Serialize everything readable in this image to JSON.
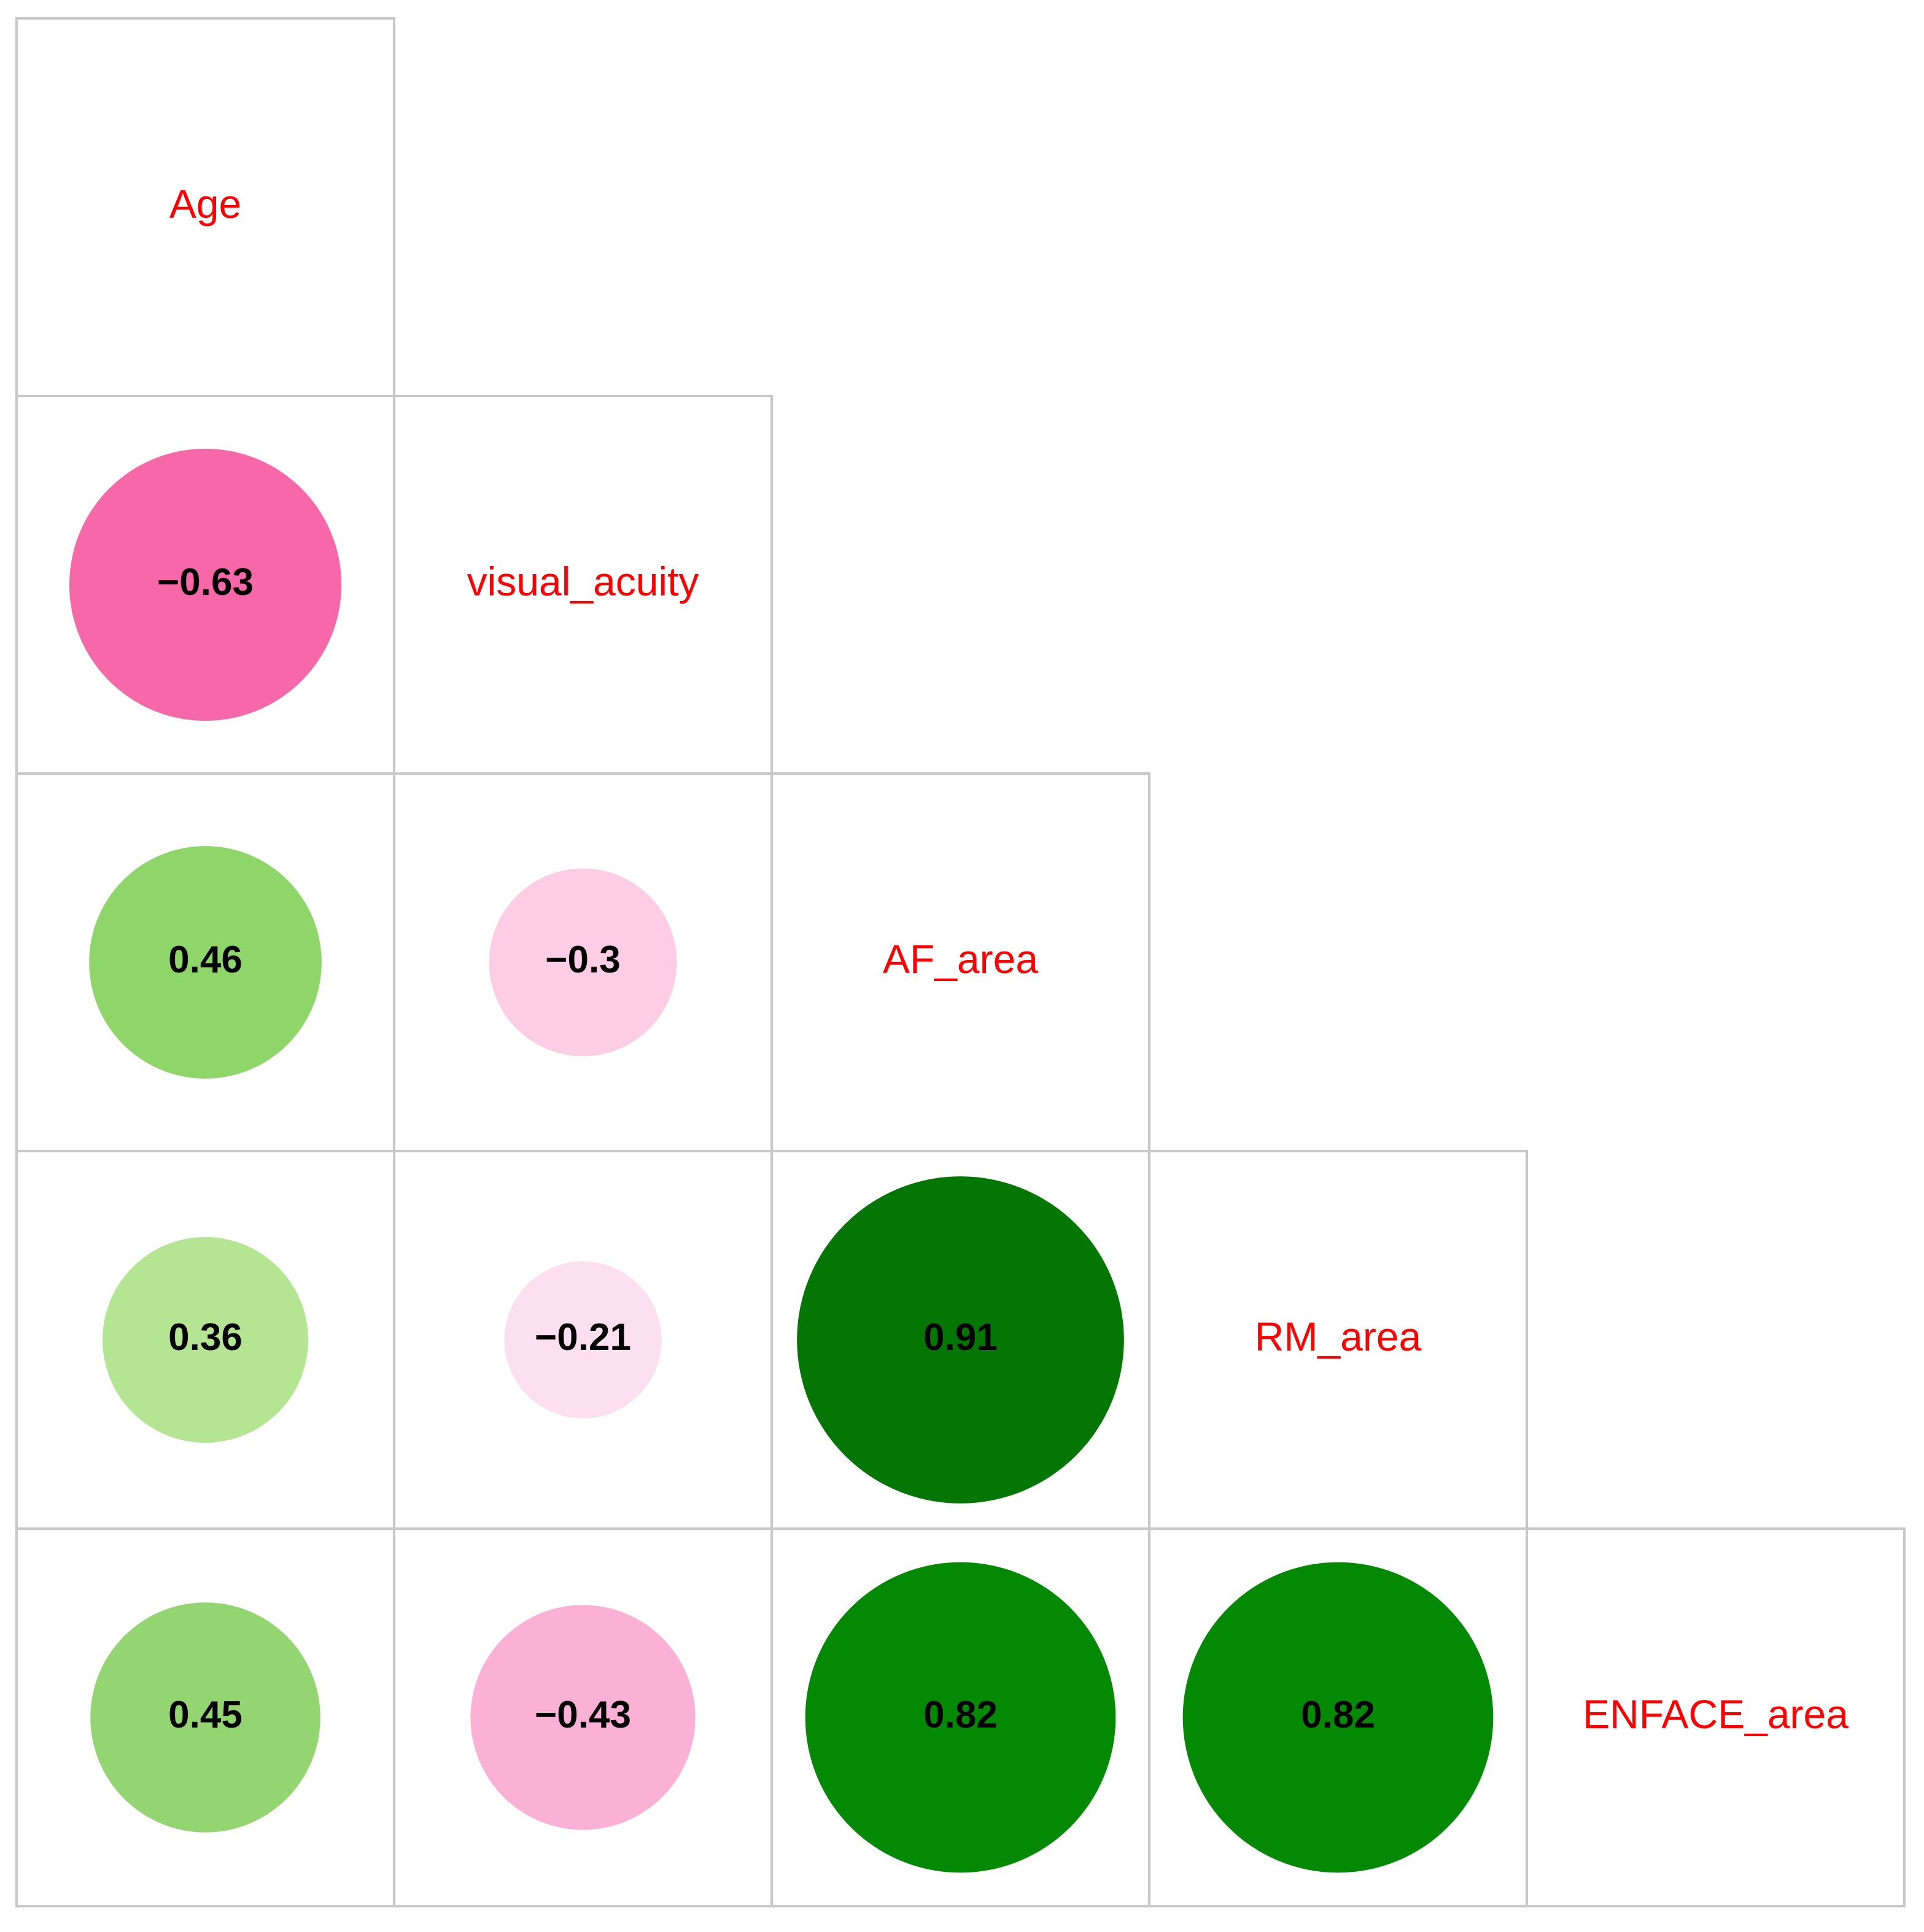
{
  "chart_data": {
    "type": "corrplot",
    "variables": [
      "Age",
      "visual_acuity",
      "AF_area",
      "RM_area",
      "ENFACE_area"
    ],
    "values": [
      [
        -0.63
      ],
      [
        0.46,
        -0.3
      ],
      [
        0.36,
        -0.21,
        0.91
      ],
      [
        0.45,
        -0.43,
        0.82,
        0.82
      ]
    ],
    "value_labels": [
      [
        "−0.63"
      ],
      [
        "0.46",
        "−0.3"
      ],
      [
        "0.36",
        "−0.21",
        "0.91"
      ],
      [
        "0.45",
        "−0.43",
        "0.82",
        "0.82"
      ]
    ],
    "colors": [
      [
        "#f768a8"
      ],
      [
        "#8fd66a",
        "#fdcde5"
      ],
      [
        "#b3e592",
        "#fde0ef",
        "#047604"
      ],
      [
        "#93d671",
        "#fbb0d6",
        "#048904",
        "#048904"
      ]
    ],
    "label_color": "#ff0000"
  }
}
